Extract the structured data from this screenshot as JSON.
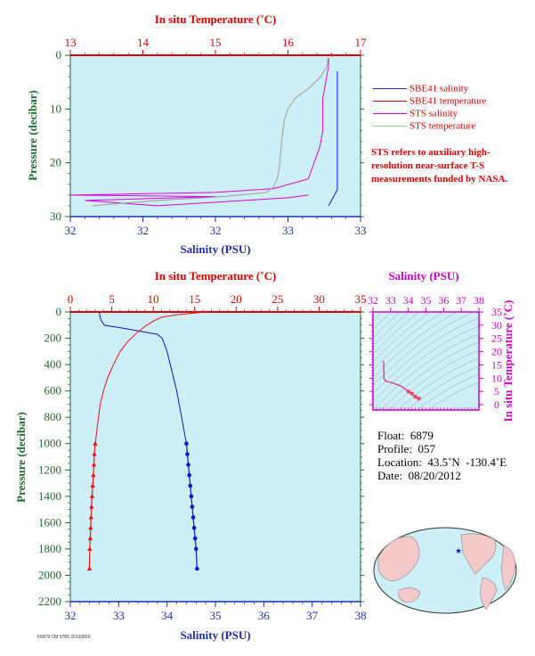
{
  "top_panel": {
    "top_axis_label": "In situ Temperature (˚C)",
    "bottom_axis_label": "Salinity (PSU)",
    "left_axis_label": "Pressure (decibar)",
    "temp_ticks": [
      "13",
      "14",
      "15",
      "16",
      "17"
    ],
    "sal_ticks": [
      "32",
      "32",
      "32",
      "33",
      "33"
    ],
    "pres_ticks": [
      "0",
      "10",
      "20",
      "30"
    ]
  },
  "legend": {
    "items": [
      {
        "label": "SBE41 salinity",
        "color": "#1f2fb0"
      },
      {
        "label": "SBE41 temperature",
        "color": "#dd0000"
      },
      {
        "label": "STS salinity",
        "color": "#dd00dd"
      },
      {
        "label": "STS temperature",
        "color": "#88dd88"
      }
    ],
    "note": "STS refers to auxiliary high-resolution near-surface T-S measurements funded by NASA."
  },
  "main_panel": {
    "top_axis_label": "In situ Temperature (˚C)",
    "bottom_axis_label": "Salinity (PSU)",
    "left_axis_label": "Pressure (decibar)",
    "temp_ticks": [
      "0",
      "5",
      "10",
      "15",
      "20",
      "25",
      "30",
      "35"
    ],
    "sal_ticks": [
      "32",
      "33",
      "34",
      "35",
      "36",
      "37",
      "38"
    ],
    "pres_ticks": [
      "0",
      "200",
      "400",
      "600",
      "800",
      "1000",
      "1200",
      "1400",
      "1600",
      "1800",
      "2000",
      "2200"
    ]
  },
  "ts_panel": {
    "top_axis_label": "Salinity (PSU)",
    "right_axis_label": "In situ Temperature (˚C)",
    "sal_ticks": [
      "32",
      "33",
      "34",
      "35",
      "36",
      "37",
      "38"
    ],
    "temp_ticks": [
      "0",
      "5",
      "10",
      "15",
      "20",
      "25",
      "30",
      "35"
    ]
  },
  "float_info": {
    "float": "Float:  6879",
    "profile": "Profile:  057",
    "location": "Location:  43.5˚N  -130.4˚E",
    "date": "Date:  08/20/2012"
  },
  "footer_tiny": "F6879 CM 0785 20120820",
  "colors": {
    "plot_bg": "#cdeff8",
    "salinity": "#1010d0",
    "temperature": "#ee1111",
    "sts_salinity": "#dd00dd",
    "sts_temperature": "#a0a090",
    "axis_red": "#dd0000",
    "axis_blue": "#1f2fb0",
    "axis_green": "#1d6b2d",
    "axis_magenta": "#cc00cc"
  },
  "chart_data": [
    {
      "type": "line",
      "title": "",
      "xlabel": "Salinity (PSU)",
      "x2label": "In situ Temperature (˚C)",
      "ylabel": "Pressure (decibar)",
      "xlim": [
        32.0,
        33.0
      ],
      "x2lim": [
        13,
        17
      ],
      "ylim": [
        30,
        0
      ],
      "series": [
        {
          "name": "SBE41 salinity",
          "axis": "salinity",
          "x": [
            32.92,
            32.92,
            32.92,
            32.92,
            32.92,
            32.92,
            32.91,
            32.9,
            32.89
          ],
          "y": [
            3,
            8,
            13,
            18,
            22,
            25,
            26,
            27,
            28
          ]
        },
        {
          "name": "STS salinity",
          "axis": "salinity",
          "x": [
            32.89,
            32.89,
            32.88,
            32.87,
            32.87,
            32.87,
            32.86,
            32.84,
            32.82,
            32.7,
            32.5,
            32.2,
            32.0,
            32.5,
            32.05,
            32.3,
            32.75,
            32.82
          ],
          "y": [
            0.5,
            2,
            5,
            8,
            11,
            14,
            17,
            20,
            23,
            24.8,
            25.5,
            25.8,
            26.0,
            26.3,
            27.0,
            28.0,
            26.5,
            26.0
          ]
        },
        {
          "name": "STS temperature",
          "axis": "temperature",
          "x": [
            16.55,
            16.54,
            16.45,
            16.3,
            16.1,
            16.0,
            15.95,
            15.92,
            15.9,
            15.88,
            15.85,
            15.8,
            15.7,
            15.1,
            14.2,
            13.3
          ],
          "y": [
            0.5,
            2,
            4,
            6,
            8,
            10,
            12,
            15,
            18,
            21,
            23,
            24.5,
            25.5,
            26.3,
            27.0,
            28.0
          ]
        },
        {
          "name": "SBE41 temperature",
          "axis": "temperature",
          "x": [
            16.6
          ],
          "y": [
            0
          ]
        }
      ]
    },
    {
      "type": "line",
      "title": "",
      "xlabel": "Salinity (PSU)",
      "x2label": "In situ Temperature (˚C)",
      "ylabel": "Pressure (decibar)",
      "xlim": [
        32,
        38
      ],
      "x2lim": [
        0,
        35
      ],
      "ylim": [
        2200,
        0
      ],
      "series": [
        {
          "name": "salinity",
          "axis": "salinity",
          "x": [
            32.6,
            32.62,
            32.7,
            33.2,
            33.8,
            33.9,
            34.0,
            34.1,
            34.2,
            34.3,
            34.35,
            34.4
          ],
          "y": [
            0,
            50,
            100,
            130,
            170,
            200,
            300,
            450,
            600,
            800,
            900,
            1000
          ]
        },
        {
          "name": "salinity (points)",
          "axis": "salinity",
          "marker": "circle",
          "x": [
            34.4,
            34.42,
            34.44,
            34.46,
            34.48,
            34.5,
            34.52,
            34.54,
            34.56,
            34.58,
            34.6,
            34.62
          ],
          "y": [
            1000,
            1080,
            1160,
            1240,
            1320,
            1400,
            1480,
            1560,
            1640,
            1720,
            1800,
            1950
          ]
        },
        {
          "name": "temperature",
          "axis": "temperature",
          "x": [
            16.5,
            15.5,
            13.0,
            11.0,
            10.0,
            9.0,
            8.0,
            7.0,
            6.0,
            5.2,
            4.5,
            4.0,
            3.6,
            3.4,
            3.2,
            3.0
          ],
          "y": [
            0,
            5,
            20,
            40,
            70,
            110,
            160,
            220,
            300,
            400,
            500,
            600,
            700,
            800,
            900,
            1000
          ]
        },
        {
          "name": "temperature (points)",
          "axis": "temperature",
          "marker": "triangle",
          "x": [
            3.0,
            2.9,
            2.85,
            2.78,
            2.7,
            2.62,
            2.56,
            2.5,
            2.45,
            2.4,
            2.35,
            2.3
          ],
          "y": [
            1000,
            1080,
            1160,
            1240,
            1320,
            1400,
            1480,
            1560,
            1640,
            1720,
            1800,
            1950
          ]
        }
      ]
    },
    {
      "type": "line",
      "title": "",
      "xlabel": "Salinity (PSU)",
      "ylabel": "In situ Temperature (˚C)",
      "xlim": [
        32,
        38
      ],
      "ylim": [
        -2,
        35
      ],
      "series": [
        {
          "name": "T-S",
          "x": [
            32.6,
            32.62,
            32.7,
            33.2,
            33.6,
            33.8,
            34.0,
            34.2,
            34.4,
            34.6
          ],
          "y": [
            16.5,
            10.0,
            9.0,
            8.0,
            7.0,
            6.0,
            5.0,
            4.2,
            3.0,
            2.3
          ]
        }
      ]
    }
  ]
}
